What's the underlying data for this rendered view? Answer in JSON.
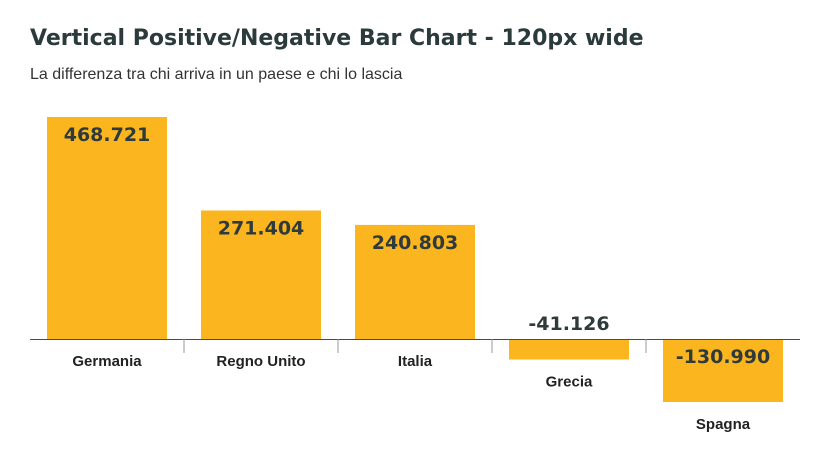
{
  "chart_data": {
    "type": "bar",
    "title": "Vertical Positive/Negative Bar Chart - 120px wide",
    "subtitle": "La differenza tra chi arriva in un paese e chi lo lascia",
    "categories": [
      "Germania",
      "Regno Unito",
      "Italia",
      "Grecia",
      "Spagna"
    ],
    "values": [
      468721,
      271404,
      240803,
      -41126,
      -130990
    ],
    "value_labels": [
      "468.721",
      "271.404",
      "240.803",
      "-41.126",
      "-130.990"
    ],
    "xlabel": "",
    "ylabel": "",
    "ylim": [
      -130990,
      468721
    ],
    "grid": false,
    "legend": "none",
    "colors": {
      "bar": "#fbb51f",
      "baseline": "#4a4a4a",
      "value_text": "#2f3b3b",
      "category_text": "#222222"
    }
  }
}
